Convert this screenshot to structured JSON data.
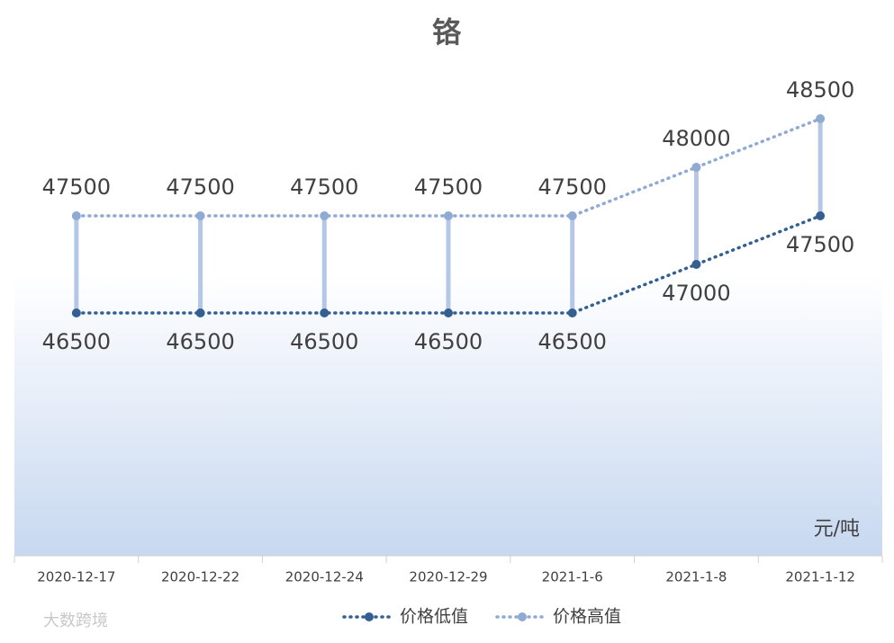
{
  "chart_data": {
    "type": "line",
    "title": "铬",
    "unit_label": "元/吨",
    "watermark": "大数跨境",
    "categories": [
      "2020-12-17",
      "2020-12-22",
      "2020-12-24",
      "2020-12-29",
      "2021-1-6",
      "2021-1-8",
      "2021-1-12"
    ],
    "series": [
      {
        "name": "价格低值",
        "color": "#335f92",
        "values": [
          46500,
          46500,
          46500,
          46500,
          46500,
          47000,
          47500
        ]
      },
      {
        "name": "价格高值",
        "color": "#8faad3",
        "values": [
          47500,
          47500,
          47500,
          47500,
          47500,
          48000,
          48500
        ]
      }
    ],
    "high_low_lines": true,
    "high_low_color": "#b4c7e7",
    "ylim": [
      44000,
      49000
    ],
    "legend": "bottom"
  }
}
